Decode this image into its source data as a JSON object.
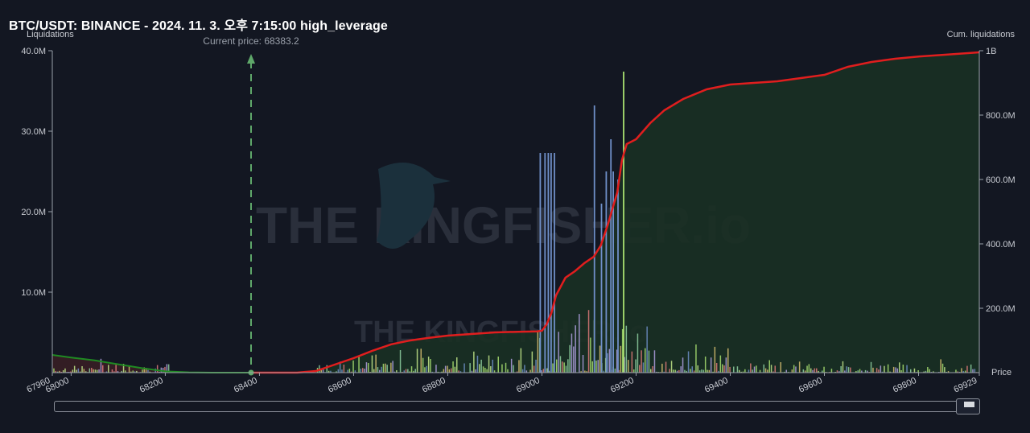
{
  "title": "BTC/USDT: BINANCE - 2024. 11. 3. 오후 7:15:00 high_leverage",
  "watermark": "THE KINGFISHER.io",
  "current_price_label": "Current price: 68383.2",
  "colors": {
    "background": "#131722",
    "cumulative_short": "#e01e1e",
    "cumulative_long": "#1f8a22",
    "current_price_line": "#5fa86a",
    "grid_axis": "#9aa0aa"
  },
  "chart_data": {
    "type": "bar",
    "title": "BTC/USDT: BINANCE - 2024. 11. 3. 오후 7:15:00 high_leverage",
    "xlabel": "Price",
    "ylabel": "Liquidations",
    "y2label": "Cum. liquidations",
    "xlim": [
      67960,
      69929
    ],
    "ylim": [
      0,
      40000000
    ],
    "y2lim": [
      0,
      1000000000
    ],
    "x_ticks": [
      "67960",
      "68000",
      "68200",
      "68400",
      "68600",
      "68800",
      "69000",
      "69200",
      "69400",
      "69600",
      "69800",
      "69929"
    ],
    "y_ticks": [
      "10.0M",
      "20.0M",
      "30.0M",
      "40.0M"
    ],
    "y2_ticks": [
      "200.0M",
      "400.0M",
      "600.0M",
      "800.0M",
      "1B"
    ],
    "current_price": 68383.2,
    "cumulative_long": {
      "x": [
        67960,
        68000,
        68050,
        68100,
        68150,
        68200,
        68250,
        68300,
        68383
      ],
      "y": [
        55000000,
        47000000,
        38000000,
        26000000,
        14000000,
        4000000,
        1000000,
        0,
        0
      ]
    },
    "cumulative_short": {
      "x": [
        68383,
        68480,
        68520,
        68560,
        68600,
        68640,
        68680,
        68720,
        68760,
        68800,
        68850,
        68900,
        68950,
        68990,
        69000,
        69010,
        69020,
        69030,
        69050,
        69070,
        69090,
        69110,
        69125,
        69140,
        69160,
        69170,
        69180,
        69200,
        69230,
        69260,
        69300,
        69350,
        69400,
        69450,
        69500,
        69550,
        69600,
        69650,
        69700,
        69750,
        69800,
        69850,
        69929
      ],
      "y": [
        0,
        0,
        5000000,
        25000000,
        45000000,
        68000000,
        88000000,
        100000000,
        108000000,
        115000000,
        120000000,
        125000000,
        127000000,
        128000000,
        130000000,
        150000000,
        185000000,
        240000000,
        295000000,
        315000000,
        340000000,
        360000000,
        395000000,
        460000000,
        560000000,
        660000000,
        710000000,
        725000000,
        775000000,
        815000000,
        850000000,
        880000000,
        895000000,
        900000000,
        905000000,
        915000000,
        925000000,
        950000000,
        965000000,
        975000000,
        982000000,
        987000000,
        995000000
      ]
    },
    "tall_bars": [
      {
        "price": 68995,
        "value": 27300000,
        "color": "#6f8fc8"
      },
      {
        "price": 69005,
        "value": 27300000,
        "color": "#6f8fc8"
      },
      {
        "price": 69012,
        "value": 27300000,
        "color": "#6f8fc8"
      },
      {
        "price": 69018,
        "value": 27300000,
        "color": "#6f8fc8"
      },
      {
        "price": 69025,
        "value": 27300000,
        "color": "#6f8fc8"
      },
      {
        "price": 69110,
        "value": 33200000,
        "color": "#6f8fc8"
      },
      {
        "price": 69125,
        "value": 21000000,
        "color": "#6f8fc8"
      },
      {
        "price": 69135,
        "value": 25000000,
        "color": "#6f8fc8"
      },
      {
        "price": 69145,
        "value": 29000000,
        "color": "#6f8fc8"
      },
      {
        "price": 69150,
        "value": 25000000,
        "color": "#6f8fc8"
      },
      {
        "price": 69160,
        "value": 24000000,
        "color": "#6f8fc8"
      },
      {
        "price": 69172,
        "value": 37400000,
        "color": "#a8e070"
      }
    ]
  }
}
